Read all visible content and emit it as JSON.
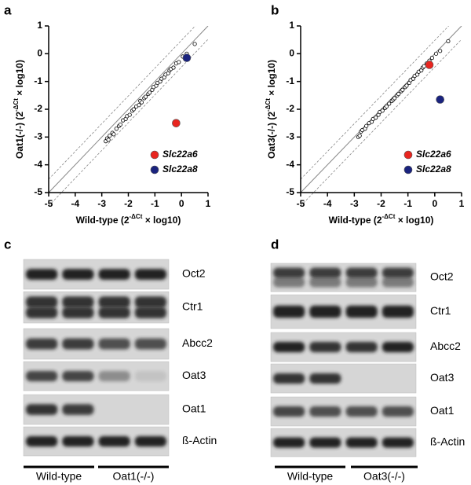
{
  "chart_data": [
    {
      "type": "scatter",
      "panel": "a",
      "xlabel": {
        "text": "Wild-type (2",
        "sup": "-ΔCt",
        "tail": " × log10)"
      },
      "ylabel": {
        "text": "Oat1(-/-) (2",
        "sup": "-ΔCt",
        "tail": " × log10)"
      },
      "xlim": [
        -5,
        1
      ],
      "ylim": [
        -5,
        1
      ],
      "xticks": [
        -5,
        -4,
        -3,
        -2,
        -1,
        0,
        1
      ],
      "yticks": [
        -5,
        -4,
        -3,
        -2,
        -1,
        0,
        1
      ],
      "legend": "lower right",
      "series": [
        {
          "color": "#000000",
          "marker": "open",
          "x": [
            -2.85,
            -2.8,
            -2.75,
            -2.7,
            -2.6,
            -2.55,
            -2.45,
            -2.35,
            -2.3,
            -2.2,
            -2.1,
            -2.05,
            -1.95,
            -1.85,
            -1.8,
            -1.7,
            -1.6,
            -1.55,
            -1.5,
            -1.4,
            -1.35,
            -1.25,
            -1.2,
            -1.1,
            -1.05,
            -0.95,
            -0.9,
            -0.8,
            -0.75,
            -0.65,
            -0.6,
            -0.5,
            -0.45,
            -0.4,
            -0.3,
            -0.2,
            -0.1,
            0.05,
            0.2,
            0.5
          ],
          "values": [
            -3.15,
            -3.05,
            -3.1,
            -2.95,
            -2.85,
            -2.9,
            -2.7,
            -2.6,
            -2.55,
            -2.4,
            -2.35,
            -2.25,
            -2.2,
            -2.05,
            -2.0,
            -1.9,
            -1.85,
            -1.7,
            -1.75,
            -1.6,
            -1.55,
            -1.45,
            -1.4,
            -1.3,
            -1.2,
            -1.15,
            -1.05,
            -1.0,
            -0.9,
            -0.85,
            -0.75,
            -0.7,
            -0.6,
            -0.55,
            -0.5,
            -0.35,
            -0.3,
            -0.1,
            0.0,
            0.35
          ]
        },
        {
          "name": "Slc22a6",
          "color": "#e8251f",
          "marker": "filled",
          "x": [
            -0.2
          ],
          "values": [
            -2.5
          ]
        },
        {
          "name": "Slc22a8",
          "color": "#1a237e",
          "marker": "filled",
          "x": [
            0.2
          ],
          "values": [
            -0.15
          ]
        }
      ]
    },
    {
      "type": "scatter",
      "panel": "b",
      "xlabel": {
        "text": "Wild-type (2",
        "sup": "-ΔCt",
        "tail": " × log10)"
      },
      "ylabel": {
        "text": "Oat3(-/-) (2",
        "sup": "-ΔCt",
        "tail": " × log10)"
      },
      "xlim": [
        -5,
        1
      ],
      "ylim": [
        -5,
        1
      ],
      "xticks": [
        -5,
        -4,
        -3,
        -2,
        -1,
        0,
        1
      ],
      "yticks": [
        -5,
        -4,
        -3,
        -2,
        -1,
        0,
        1
      ],
      "legend": "lower right",
      "series": [
        {
          "color": "#000000",
          "marker": "open",
          "x": [
            -2.85,
            -2.8,
            -2.75,
            -2.7,
            -2.6,
            -2.55,
            -2.45,
            -2.35,
            -2.3,
            -2.2,
            -2.1,
            -2.05,
            -1.95,
            -1.85,
            -1.8,
            -1.7,
            -1.6,
            -1.55,
            -1.5,
            -1.4,
            -1.35,
            -1.25,
            -1.2,
            -1.1,
            -1.05,
            -0.95,
            -0.9,
            -0.8,
            -0.75,
            -0.65,
            -0.6,
            -0.5,
            -0.45,
            -0.4,
            -0.3,
            -0.2,
            -0.1,
            0.05,
            0.2,
            0.5
          ],
          "values": [
            -3.0,
            -2.95,
            -2.8,
            -2.75,
            -2.7,
            -2.6,
            -2.5,
            -2.45,
            -2.35,
            -2.3,
            -2.2,
            -2.1,
            -2.05,
            -1.95,
            -1.9,
            -1.8,
            -1.7,
            -1.65,
            -1.6,
            -1.5,
            -1.45,
            -1.35,
            -1.3,
            -1.2,
            -1.15,
            -1.05,
            -0.95,
            -0.9,
            -0.8,
            -0.75,
            -0.65,
            -0.6,
            -0.5,
            -0.45,
            -0.35,
            -0.25,
            -0.15,
            0.0,
            0.1,
            0.45
          ]
        },
        {
          "name": "Slc22a6",
          "color": "#e8251f",
          "marker": "filled",
          "x": [
            -0.2
          ],
          "values": [
            -0.4
          ]
        },
        {
          "name": "Slc22a8",
          "color": "#1a237e",
          "marker": "filled",
          "x": [
            0.2
          ],
          "values": [
            -1.65
          ]
        }
      ]
    }
  ],
  "blots": [
    {
      "panel": "c",
      "rows": [
        "Oct2",
        "Ctr1",
        "Abcc2",
        "Oat3",
        "Oat1",
        "ß-Actin"
      ],
      "groups": [
        "Wild-type",
        "Oat1(-/-)"
      ]
    },
    {
      "panel": "d",
      "rows": [
        "Oct2",
        "Ctr1",
        "Abcc2",
        "Oat3",
        "Oat1",
        "ß-Actin"
      ],
      "groups": [
        "Wild-type",
        "Oat3(-/-)"
      ]
    }
  ]
}
